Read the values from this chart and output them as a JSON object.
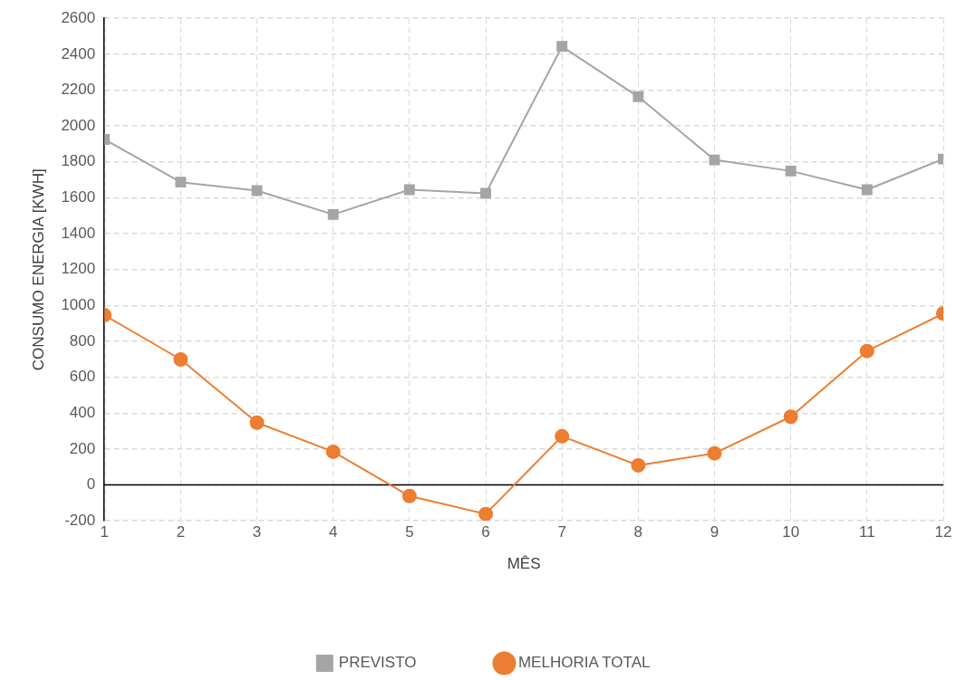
{
  "chart_data": {
    "type": "line",
    "xlabel": "MÊS",
    "ylabel": "CONSUMO ENERGIA [KWH]",
    "x": [
      1,
      2,
      3,
      4,
      5,
      6,
      7,
      8,
      9,
      10,
      11,
      12
    ],
    "series": [
      {
        "name": "PREVISTO",
        "color": "#a5a5a5",
        "marker": "square",
        "values": [
          1925,
          1687,
          1640,
          1507,
          1645,
          1625,
          2443,
          2163,
          1811,
          1749,
          1645,
          1816
        ]
      },
      {
        "name": "MELHORIA TOTAL",
        "color": "#ed7d31",
        "marker": "circle",
        "values": [
          946,
          699,
          347,
          185,
          -62,
          -162,
          271,
          109,
          176,
          380,
          746,
          955
        ]
      }
    ],
    "xlim": [
      1,
      12
    ],
    "xticks": [
      1,
      2,
      3,
      4,
      5,
      6,
      7,
      8,
      9,
      10,
      11,
      12
    ],
    "ylim": [
      -200,
      2600
    ],
    "yticks": [
      -200,
      0,
      200,
      400,
      600,
      800,
      1000,
      1200,
      1400,
      1600,
      1800,
      2000,
      2200,
      2400,
      2600
    ],
    "ref_lines": [
      {
        "axis": "y",
        "value": 0,
        "color": "#000000"
      }
    ],
    "grid": true,
    "legend": "bottom",
    "line_style": "solid"
  }
}
